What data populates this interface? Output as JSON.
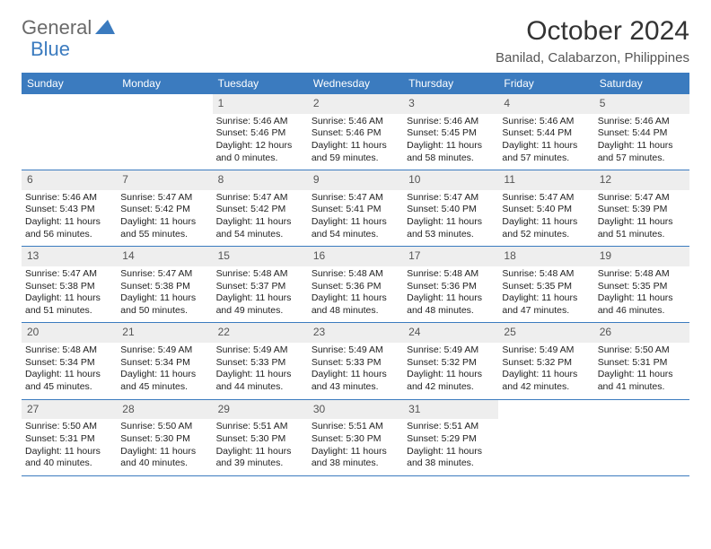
{
  "brand": {
    "part1": "General",
    "part2": "Blue"
  },
  "title": {
    "month": "October 2024",
    "location": "Banilad, Calabarzon, Philippines"
  },
  "colors": {
    "header_bg": "#3b7bbf",
    "header_text": "#ffffff",
    "daynum_bg": "#eeeeee",
    "row_divider": "#3b7bbf",
    "body_text": "#1a1a1a",
    "page_bg": "#ffffff",
    "logo_gray": "#6a6a6a",
    "logo_blue": "#3b7bbf"
  },
  "typography": {
    "month_fontsize": 30,
    "location_fontsize": 15,
    "dayhead_fontsize": 12,
    "cell_fontsize": 10.5
  },
  "daynames": [
    "Sunday",
    "Monday",
    "Tuesday",
    "Wednesday",
    "Thursday",
    "Friday",
    "Saturday"
  ],
  "weeks": [
    [
      null,
      null,
      {
        "n": "1",
        "sr": "Sunrise: 5:46 AM",
        "ss": "Sunset: 5:46 PM",
        "dl1": "Daylight: 12 hours",
        "dl2": "and 0 minutes."
      },
      {
        "n": "2",
        "sr": "Sunrise: 5:46 AM",
        "ss": "Sunset: 5:46 PM",
        "dl1": "Daylight: 11 hours",
        "dl2": "and 59 minutes."
      },
      {
        "n": "3",
        "sr": "Sunrise: 5:46 AM",
        "ss": "Sunset: 5:45 PM",
        "dl1": "Daylight: 11 hours",
        "dl2": "and 58 minutes."
      },
      {
        "n": "4",
        "sr": "Sunrise: 5:46 AM",
        "ss": "Sunset: 5:44 PM",
        "dl1": "Daylight: 11 hours",
        "dl2": "and 57 minutes."
      },
      {
        "n": "5",
        "sr": "Sunrise: 5:46 AM",
        "ss": "Sunset: 5:44 PM",
        "dl1": "Daylight: 11 hours",
        "dl2": "and 57 minutes."
      }
    ],
    [
      {
        "n": "6",
        "sr": "Sunrise: 5:46 AM",
        "ss": "Sunset: 5:43 PM",
        "dl1": "Daylight: 11 hours",
        "dl2": "and 56 minutes."
      },
      {
        "n": "7",
        "sr": "Sunrise: 5:47 AM",
        "ss": "Sunset: 5:42 PM",
        "dl1": "Daylight: 11 hours",
        "dl2": "and 55 minutes."
      },
      {
        "n": "8",
        "sr": "Sunrise: 5:47 AM",
        "ss": "Sunset: 5:42 PM",
        "dl1": "Daylight: 11 hours",
        "dl2": "and 54 minutes."
      },
      {
        "n": "9",
        "sr": "Sunrise: 5:47 AM",
        "ss": "Sunset: 5:41 PM",
        "dl1": "Daylight: 11 hours",
        "dl2": "and 54 minutes."
      },
      {
        "n": "10",
        "sr": "Sunrise: 5:47 AM",
        "ss": "Sunset: 5:40 PM",
        "dl1": "Daylight: 11 hours",
        "dl2": "and 53 minutes."
      },
      {
        "n": "11",
        "sr": "Sunrise: 5:47 AM",
        "ss": "Sunset: 5:40 PM",
        "dl1": "Daylight: 11 hours",
        "dl2": "and 52 minutes."
      },
      {
        "n": "12",
        "sr": "Sunrise: 5:47 AM",
        "ss": "Sunset: 5:39 PM",
        "dl1": "Daylight: 11 hours",
        "dl2": "and 51 minutes."
      }
    ],
    [
      {
        "n": "13",
        "sr": "Sunrise: 5:47 AM",
        "ss": "Sunset: 5:38 PM",
        "dl1": "Daylight: 11 hours",
        "dl2": "and 51 minutes."
      },
      {
        "n": "14",
        "sr": "Sunrise: 5:47 AM",
        "ss": "Sunset: 5:38 PM",
        "dl1": "Daylight: 11 hours",
        "dl2": "and 50 minutes."
      },
      {
        "n": "15",
        "sr": "Sunrise: 5:48 AM",
        "ss": "Sunset: 5:37 PM",
        "dl1": "Daylight: 11 hours",
        "dl2": "and 49 minutes."
      },
      {
        "n": "16",
        "sr": "Sunrise: 5:48 AM",
        "ss": "Sunset: 5:36 PM",
        "dl1": "Daylight: 11 hours",
        "dl2": "and 48 minutes."
      },
      {
        "n": "17",
        "sr": "Sunrise: 5:48 AM",
        "ss": "Sunset: 5:36 PM",
        "dl1": "Daylight: 11 hours",
        "dl2": "and 48 minutes."
      },
      {
        "n": "18",
        "sr": "Sunrise: 5:48 AM",
        "ss": "Sunset: 5:35 PM",
        "dl1": "Daylight: 11 hours",
        "dl2": "and 47 minutes."
      },
      {
        "n": "19",
        "sr": "Sunrise: 5:48 AM",
        "ss": "Sunset: 5:35 PM",
        "dl1": "Daylight: 11 hours",
        "dl2": "and 46 minutes."
      }
    ],
    [
      {
        "n": "20",
        "sr": "Sunrise: 5:48 AM",
        "ss": "Sunset: 5:34 PM",
        "dl1": "Daylight: 11 hours",
        "dl2": "and 45 minutes."
      },
      {
        "n": "21",
        "sr": "Sunrise: 5:49 AM",
        "ss": "Sunset: 5:34 PM",
        "dl1": "Daylight: 11 hours",
        "dl2": "and 45 minutes."
      },
      {
        "n": "22",
        "sr": "Sunrise: 5:49 AM",
        "ss": "Sunset: 5:33 PM",
        "dl1": "Daylight: 11 hours",
        "dl2": "and 44 minutes."
      },
      {
        "n": "23",
        "sr": "Sunrise: 5:49 AM",
        "ss": "Sunset: 5:33 PM",
        "dl1": "Daylight: 11 hours",
        "dl2": "and 43 minutes."
      },
      {
        "n": "24",
        "sr": "Sunrise: 5:49 AM",
        "ss": "Sunset: 5:32 PM",
        "dl1": "Daylight: 11 hours",
        "dl2": "and 42 minutes."
      },
      {
        "n": "25",
        "sr": "Sunrise: 5:49 AM",
        "ss": "Sunset: 5:32 PM",
        "dl1": "Daylight: 11 hours",
        "dl2": "and 42 minutes."
      },
      {
        "n": "26",
        "sr": "Sunrise: 5:50 AM",
        "ss": "Sunset: 5:31 PM",
        "dl1": "Daylight: 11 hours",
        "dl2": "and 41 minutes."
      }
    ],
    [
      {
        "n": "27",
        "sr": "Sunrise: 5:50 AM",
        "ss": "Sunset: 5:31 PM",
        "dl1": "Daylight: 11 hours",
        "dl2": "and 40 minutes."
      },
      {
        "n": "28",
        "sr": "Sunrise: 5:50 AM",
        "ss": "Sunset: 5:30 PM",
        "dl1": "Daylight: 11 hours",
        "dl2": "and 40 minutes."
      },
      {
        "n": "29",
        "sr": "Sunrise: 5:51 AM",
        "ss": "Sunset: 5:30 PM",
        "dl1": "Daylight: 11 hours",
        "dl2": "and 39 minutes."
      },
      {
        "n": "30",
        "sr": "Sunrise: 5:51 AM",
        "ss": "Sunset: 5:30 PM",
        "dl1": "Daylight: 11 hours",
        "dl2": "and 38 minutes."
      },
      {
        "n": "31",
        "sr": "Sunrise: 5:51 AM",
        "ss": "Sunset: 5:29 PM",
        "dl1": "Daylight: 11 hours",
        "dl2": "and 38 minutes."
      },
      null,
      null
    ]
  ]
}
